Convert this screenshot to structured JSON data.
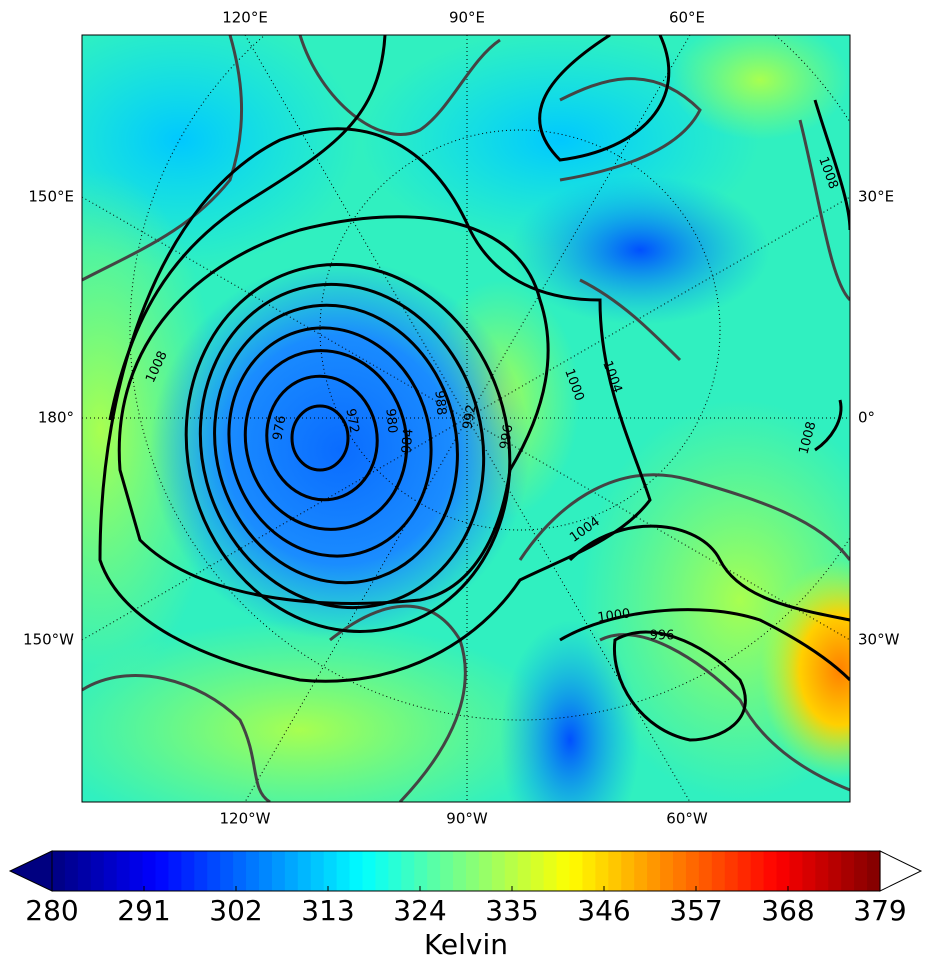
{
  "map": {
    "top_labels": [
      "120°E",
      "90°E",
      "60°E"
    ],
    "bottom_labels": [
      "120°W",
      "90°W",
      "60°W"
    ],
    "left_labels": [
      "150°E",
      "180°",
      "150°W"
    ],
    "right_labels": [
      "30°E",
      "0°",
      "30°W"
    ],
    "contour_labels": [
      1008,
      976,
      972,
      980,
      984,
      988,
      992,
      996,
      1000,
      1004,
      1008,
      1008,
      1004,
      1000,
      996
    ]
  },
  "colorbar": {
    "range": [
      280,
      379
    ],
    "ticks": [
      280,
      291,
      302,
      313,
      324,
      335,
      346,
      357,
      368,
      379
    ],
    "label": "Kelvin"
  }
}
